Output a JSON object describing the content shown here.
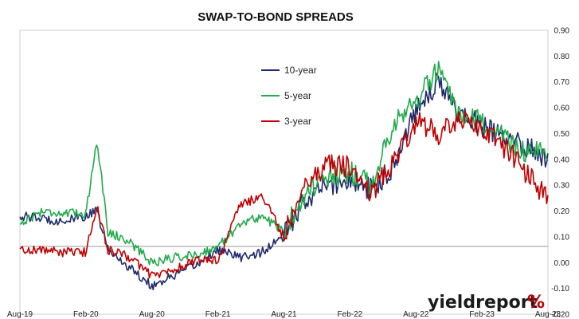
{
  "chart_data": {
    "type": "line",
    "title": "SWAP-TO-BOND SPREADS",
    "x_ticks": [
      "Aug-19",
      "Feb-20",
      "Aug-20",
      "Feb-21",
      "Aug-21",
      "Feb-22",
      "Aug-22",
      "Feb-23",
      "Aug-23"
    ],
    "y_ticks": [
      "0.90",
      "0.80",
      "0.70",
      "0.60",
      "0.50",
      "0.40",
      "0.30",
      "0.20",
      "0.10",
      "0.00",
      "-0.10",
      "-0.20"
    ],
    "ylim": [
      -0.2,
      0.9
    ],
    "y_axis_side": "right",
    "grid": false,
    "legend_position": "upper-center",
    "series": [
      {
        "name": "10-year",
        "color": "#1f2a6b",
        "x": [
          "2019-08",
          "2019-10",
          "2019-12",
          "2020-02",
          "2020-03",
          "2020-04",
          "2020-06",
          "2020-08",
          "2020-10",
          "2020-12",
          "2021-02",
          "2021-04",
          "2021-06",
          "2021-08",
          "2021-10",
          "2021-12",
          "2022-02",
          "2022-04",
          "2022-06",
          "2022-08",
          "2022-10",
          "2022-12",
          "2023-02",
          "2023-04",
          "2023-06",
          "2023-08"
        ],
        "values": [
          0.18,
          0.17,
          0.16,
          0.18,
          0.2,
          0.05,
          -0.02,
          -0.09,
          -0.05,
          -0.01,
          0.05,
          0.02,
          0.04,
          0.1,
          0.25,
          0.3,
          0.32,
          0.28,
          0.38,
          0.6,
          0.7,
          0.58,
          0.53,
          0.48,
          0.45,
          0.4
        ]
      },
      {
        "name": "5-year",
        "color": "#22a94b",
        "x": [
          "2019-08",
          "2019-10",
          "2019-12",
          "2020-02",
          "2020-03",
          "2020-04",
          "2020-06",
          "2020-08",
          "2020-10",
          "2020-12",
          "2021-02",
          "2021-04",
          "2021-06",
          "2021-08",
          "2021-10",
          "2021-12",
          "2022-02",
          "2022-04",
          "2022-06",
          "2022-08",
          "2022-10",
          "2022-12",
          "2023-02",
          "2023-04",
          "2023-06",
          "2023-08"
        ],
        "values": [
          0.15,
          0.2,
          0.19,
          0.19,
          0.48,
          0.12,
          0.08,
          0.0,
          0.02,
          0.03,
          0.06,
          0.15,
          0.18,
          0.12,
          0.28,
          0.32,
          0.35,
          0.3,
          0.55,
          0.62,
          0.75,
          0.55,
          0.55,
          0.48,
          0.43,
          0.42
        ]
      },
      {
        "name": "3-year",
        "color": "#c00000",
        "x": [
          "2019-08",
          "2019-10",
          "2019-12",
          "2020-02",
          "2020-03",
          "2020-04",
          "2020-06",
          "2020-08",
          "2020-10",
          "2020-12",
          "2021-02",
          "2021-04",
          "2021-06",
          "2021-08",
          "2021-10",
          "2021-12",
          "2022-02",
          "2022-04",
          "2022-06",
          "2022-08",
          "2022-10",
          "2022-12",
          "2023-02",
          "2023-04",
          "2023-06",
          "2023-08"
        ],
        "values": [
          0.05,
          0.05,
          0.04,
          0.04,
          0.22,
          0.05,
          0.02,
          -0.05,
          -0.03,
          0.01,
          0.01,
          0.22,
          0.26,
          0.1,
          0.32,
          0.38,
          0.37,
          0.27,
          0.4,
          0.55,
          0.5,
          0.55,
          0.52,
          0.45,
          0.35,
          0.25
        ]
      }
    ]
  },
  "logo": {
    "text": "yieldreport",
    "symbol": "%",
    "text_color": "#1a1a1a",
    "symbol_color": "#c00000",
    "accent_color": "#22a94b"
  }
}
